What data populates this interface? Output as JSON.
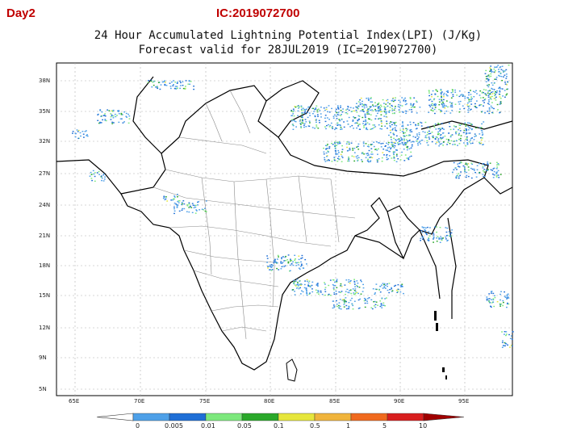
{
  "header": {
    "day_label": "Day2",
    "ic_label": "IC:2019072700"
  },
  "title": {
    "line1": "24 Hour Accumulated Lightning Potential Index(LPI) (J/Kg)",
    "line2": "Forecast valid for 28JUL2019 (IC=2019072700)"
  },
  "axes": {
    "lat_labels": [
      "38N",
      "35N",
      "32N",
      "27N",
      "24N",
      "21N",
      "18N",
      "15N",
      "12N",
      "9N",
      "5N"
    ],
    "lon_labels": [
      "65E",
      "70E",
      "75E",
      "80E",
      "85E",
      "90E",
      "95E"
    ]
  },
  "colorbar": {
    "labels": [
      "0",
      "0.005",
      "0.01",
      "0.05",
      "0.1",
      "0.5",
      "1",
      "5",
      "10"
    ],
    "colors": [
      "#4ea0e8",
      "#1f6fd6",
      "#7de87d",
      "#2aa82a",
      "#e6e63c",
      "#f0b43c",
      "#f06a1e",
      "#d81e1e",
      "#a00000"
    ]
  },
  "legend_colors": {
    "land_fill": "#ffffff",
    "border": "#000000",
    "district": "#8a8a8a",
    "grid": "#b0b0b0"
  }
}
